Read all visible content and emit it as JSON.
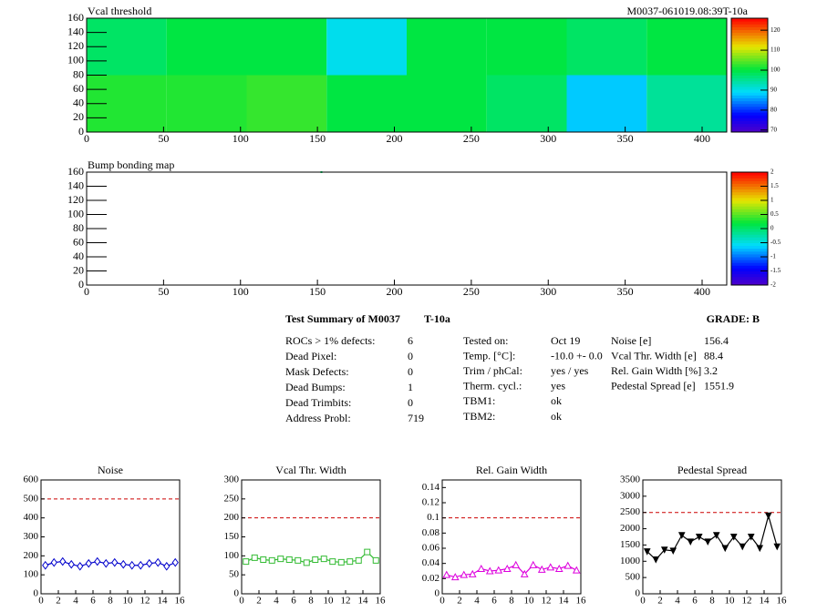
{
  "chart_data": [
    {
      "type": "heatmap",
      "title": "Vcal threshold",
      "subtitle": "M0037-061019.08:39T-10a",
      "xbins": [
        0,
        52,
        104,
        156,
        208,
        260,
        312,
        364,
        416
      ],
      "ybins": [
        0,
        80,
        160
      ],
      "values": [
        [
          102,
          102,
          103,
          100,
          100,
          98,
          88,
          95
        ],
        [
          98,
          100,
          100,
          90,
          100,
          100,
          98,
          100
        ]
      ],
      "xlim": [
        0,
        416
      ],
      "xticks": [
        0,
        50,
        100,
        150,
        200,
        250,
        300,
        350,
        400
      ],
      "ylim": [
        0,
        160
      ],
      "yticks": [
        0,
        20,
        40,
        60,
        80,
        100,
        120,
        140,
        160
      ],
      "zlim": [
        69,
        126
      ],
      "zticks": [
        70,
        80,
        90,
        100,
        110,
        120
      ]
    },
    {
      "type": "heatmap",
      "title": "Bump bonding map",
      "cells": [
        {
          "x": 152,
          "y": 160,
          "value": 0
        }
      ],
      "xlim": [
        0,
        416
      ],
      "xticks": [
        0,
        50,
        100,
        150,
        200,
        250,
        300,
        350,
        400
      ],
      "ylim": [
        0,
        160
      ],
      "yticks": [
        0,
        20,
        40,
        60,
        80,
        100,
        120,
        140,
        160
      ],
      "zlim": [
        -2,
        2
      ],
      "zticks": [
        -2,
        -1.5,
        -1,
        -0.5,
        0,
        0.5,
        1,
        1.5,
        2
      ]
    },
    {
      "type": "line",
      "title": "Noise",
      "color": "#0000cc",
      "marker": "diamond",
      "threshold": 500,
      "x": [
        0.5,
        1.5,
        2.5,
        3.5,
        4.5,
        5.5,
        6.5,
        7.5,
        8.5,
        9.5,
        10.5,
        11.5,
        12.5,
        13.5,
        14.5,
        15.5
      ],
      "values": [
        150,
        165,
        170,
        155,
        145,
        160,
        170,
        160,
        165,
        155,
        150,
        150,
        160,
        165,
        145,
        165
      ],
      "xlim": [
        0,
        16
      ],
      "xticks": [
        0,
        2,
        4,
        6,
        8,
        10,
        12,
        14,
        16
      ],
      "ylim": [
        0,
        600
      ],
      "yticks": [
        0,
        100,
        200,
        300,
        400,
        500,
        600
      ]
    },
    {
      "type": "line",
      "title": "Vcal Thr. Width",
      "color": "#33bb33",
      "marker": "square",
      "threshold": 200,
      "x": [
        0.5,
        1.5,
        2.5,
        3.5,
        4.5,
        5.5,
        6.5,
        7.5,
        8.5,
        9.5,
        10.5,
        11.5,
        12.5,
        13.5,
        14.5,
        15.5
      ],
      "values": [
        85,
        95,
        90,
        88,
        92,
        90,
        88,
        82,
        90,
        92,
        85,
        83,
        85,
        88,
        110,
        88
      ],
      "xlim": [
        0,
        16
      ],
      "xticks": [
        0,
        2,
        4,
        6,
        8,
        10,
        12,
        14,
        16
      ],
      "ylim": [
        0,
        300
      ],
      "yticks": [
        0,
        50,
        100,
        150,
        200,
        250,
        300
      ]
    },
    {
      "type": "line",
      "title": "Rel. Gain Width",
      "color": "#dd00dd",
      "marker": "triangle",
      "threshold": 0.1,
      "x": [
        0.5,
        1.5,
        2.5,
        3.5,
        4.5,
        5.5,
        6.5,
        7.5,
        8.5,
        9.5,
        10.5,
        11.5,
        12.5,
        13.5,
        14.5,
        15.5
      ],
      "values": [
        0.025,
        0.022,
        0.025,
        0.026,
        0.033,
        0.03,
        0.031,
        0.033,
        0.038,
        0.026,
        0.038,
        0.032,
        0.035,
        0.033,
        0.037,
        0.031
      ],
      "xlim": [
        0,
        16
      ],
      "xticks": [
        0,
        2,
        4,
        6,
        8,
        10,
        12,
        14,
        16
      ],
      "ylim": [
        0,
        0.15
      ],
      "yticks": [
        0,
        0.02,
        0.04,
        0.06,
        0.08,
        0.1,
        0.12,
        0.14
      ]
    },
    {
      "type": "line",
      "title": "Pedestal Spread",
      "color": "#000000",
      "marker": "star",
      "threshold": 2500,
      "x": [
        0.5,
        1.5,
        2.5,
        3.5,
        4.5,
        5.5,
        6.5,
        7.5,
        8.5,
        9.5,
        10.5,
        11.5,
        12.5,
        13.5,
        14.5,
        15.5
      ],
      "values": [
        1300,
        1050,
        1350,
        1320,
        1800,
        1600,
        1750,
        1600,
        1800,
        1400,
        1750,
        1450,
        1750,
        1400,
        2400,
        1450
      ],
      "xlim": [
        0,
        16
      ],
      "xticks": [
        0,
        2,
        4,
        6,
        8,
        10,
        12,
        14,
        16
      ],
      "ylim": [
        0,
        3500
      ],
      "yticks": [
        0,
        500,
        1000,
        1500,
        2000,
        2500,
        3000,
        3500
      ]
    }
  ],
  "summary": {
    "title": "Test Summary of M0037",
    "temp": "T-10a",
    "grade": "GRADE:  B",
    "left": [
      [
        "ROCs > 1% defects:",
        "6"
      ],
      [
        "Dead Pixel:",
        "0"
      ],
      [
        "Mask Defects:",
        "0"
      ],
      [
        "Dead Bumps:",
        "1"
      ],
      [
        "Dead Trimbits:",
        "0"
      ],
      [
        "Address Probl:",
        "719"
      ]
    ],
    "middle": [
      [
        "Tested on:",
        "Oct 19"
      ],
      [
        "Temp. [°C]:",
        "-10.0 +- 0.0"
      ],
      [
        "Trim / phCal:",
        "yes / yes"
      ],
      [
        "Therm. cycl.:",
        "yes"
      ],
      [
        "TBM1:",
        "ok"
      ],
      [
        "TBM2:",
        "ok"
      ]
    ],
    "right": [
      [
        "Noise [e]",
        "156.4"
      ],
      [
        "Vcal Thr. Width [e]",
        "88.4"
      ],
      [
        "Rel. Gain Width [%]",
        "3.2"
      ],
      [
        "Pedestal Spread [e]",
        "1551.9"
      ]
    ]
  }
}
